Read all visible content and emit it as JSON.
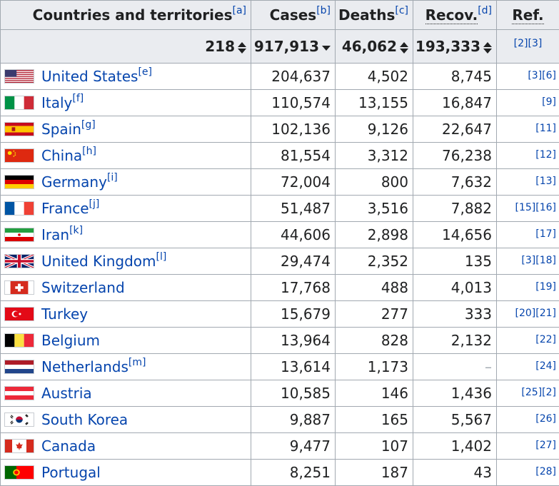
{
  "header": {
    "country": "Countries and territories",
    "country_note": "[a]",
    "cases": "Cases",
    "cases_note": "[b]",
    "deaths": "Deaths",
    "deaths_note": "[c]",
    "recov": "Recov.",
    "recov_note": "[d]",
    "ref": "Ref."
  },
  "totals": {
    "countries": "218",
    "cases": "917,913",
    "deaths": "46,062",
    "recov": "193,333",
    "ref": "[2][3]"
  },
  "rows": [
    {
      "name": "United States",
      "note": "[e]",
      "cases": "204,637",
      "deaths": "4,502",
      "recov": "8,745",
      "ref": "[3][6]",
      "flag": "us-flag-icon"
    },
    {
      "name": "Italy",
      "note": "[f]",
      "cases": "110,574",
      "deaths": "13,155",
      "recov": "16,847",
      "ref": "[9]",
      "flag": "italy-flag-icon"
    },
    {
      "name": "Spain",
      "note": "[g]",
      "cases": "102,136",
      "deaths": "9,126",
      "recov": "22,647",
      "ref": "[11]",
      "flag": "spain-flag-icon"
    },
    {
      "name": "China",
      "note": "[h]",
      "cases": "81,554",
      "deaths": "3,312",
      "recov": "76,238",
      "ref": "[12]",
      "flag": "china-flag-icon"
    },
    {
      "name": "Germany",
      "note": "[i]",
      "cases": "72,004",
      "deaths": "800",
      "recov": "7,632",
      "ref": "[13]",
      "flag": "germany-flag-icon"
    },
    {
      "name": "France",
      "note": "[j]",
      "cases": "51,487",
      "deaths": "3,516",
      "recov": "7,882",
      "ref": "[15][16]",
      "flag": "france-flag-icon"
    },
    {
      "name": "Iran",
      "note": "[k]",
      "cases": "44,606",
      "deaths": "2,898",
      "recov": "14,656",
      "ref": "[17]",
      "flag": "iran-flag-icon"
    },
    {
      "name": "United Kingdom",
      "note": "[l]",
      "cases": "29,474",
      "deaths": "2,352",
      "recov": "135",
      "ref": "[3][18]",
      "flag": "uk-flag-icon"
    },
    {
      "name": "Switzerland",
      "note": "",
      "cases": "17,768",
      "deaths": "488",
      "recov": "4,013",
      "ref": "[19]",
      "flag": "switzerland-flag-icon"
    },
    {
      "name": "Turkey",
      "note": "",
      "cases": "15,679",
      "deaths": "277",
      "recov": "333",
      "ref": "[20][21]",
      "flag": "turkey-flag-icon"
    },
    {
      "name": "Belgium",
      "note": "",
      "cases": "13,964",
      "deaths": "828",
      "recov": "2,132",
      "ref": "[22]",
      "flag": "belgium-flag-icon"
    },
    {
      "name": "Netherlands",
      "note": "[m]",
      "cases": "13,614",
      "deaths": "1,173",
      "recov": "–",
      "ref": "[24]",
      "flag": "netherlands-flag-icon"
    },
    {
      "name": "Austria",
      "note": "",
      "cases": "10,585",
      "deaths": "146",
      "recov": "1,436",
      "ref": "[25][2]",
      "flag": "austria-flag-icon"
    },
    {
      "name": "South Korea",
      "note": "",
      "cases": "9,887",
      "deaths": "165",
      "recov": "5,567",
      "ref": "[26]",
      "flag": "south-korea-flag-icon"
    },
    {
      "name": "Canada",
      "note": "",
      "cases": "9,477",
      "deaths": "107",
      "recov": "1,402",
      "ref": "[27]",
      "flag": "canada-flag-icon"
    },
    {
      "name": "Portugal",
      "note": "",
      "cases": "8,251",
      "deaths": "187",
      "recov": "43",
      "ref": "[28]",
      "flag": "portugal-flag-icon"
    }
  ],
  "colors": {
    "link": "#0645ad",
    "header_bg": "#eaecf0",
    "border": "#a2a9b1"
  }
}
